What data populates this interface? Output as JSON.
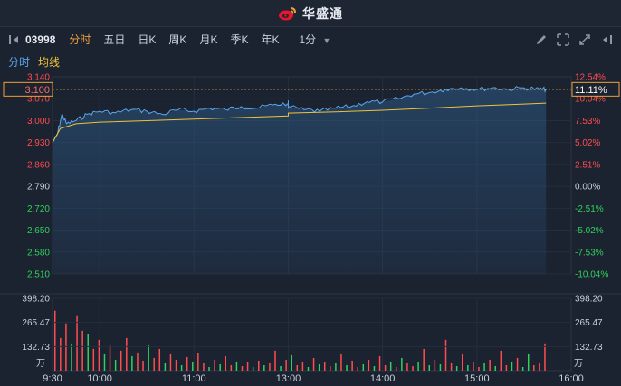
{
  "app": {
    "brand": "华盛通"
  },
  "toolbar": {
    "stock_code": "03998",
    "tabs": [
      "分时",
      "五日",
      "日K",
      "周K",
      "月K",
      "季K",
      "年K"
    ],
    "interval": "1分",
    "icons": [
      "pencil-icon",
      "expand-icon",
      "arrows-icon",
      "collapse-icon"
    ]
  },
  "legend": {
    "time_share": "分时",
    "average": "均线"
  },
  "colors": {
    "up": "#ff4d4f",
    "down": "#2fd15c",
    "price_line": "#5aa7ef",
    "avg_line": "#f0c23a",
    "accent": "#f0a13a",
    "bg": "#1b2230"
  },
  "chart_data": {
    "type": "line",
    "prev_close": 2.79,
    "current_price": "3.100",
    "current_pct": "11.11%",
    "price_ticks": [
      "3.140",
      "3.070",
      "3.000",
      "2.930",
      "2.860",
      "2.790",
      "2.720",
      "2.650",
      "2.580",
      "2.510"
    ],
    "pct_ticks": [
      "12.54%",
      "10.04%",
      "7.53%",
      "5.02%",
      "2.51%",
      "0.00%",
      "-2.51%",
      "-5.02%",
      "-7.53%",
      "-10.04%"
    ],
    "volume_ticks": [
      "398.20",
      "265.47",
      "132.73"
    ],
    "volume_unit": "万",
    "time_ticks": [
      "9:30",
      "10:00",
      "11:00",
      "13:00",
      "14:00",
      "15:00",
      "16:00"
    ],
    "price_ylim": [
      2.51,
      3.14
    ],
    "price_series": [
      [
        "09:30",
        2.93
      ],
      [
        "09:33",
        2.955
      ],
      [
        "09:36",
        3.02
      ],
      [
        "09:39",
        2.99
      ],
      [
        "09:45",
        3.0
      ],
      [
        "09:52",
        3.02
      ],
      [
        "10:00",
        3.03
      ],
      [
        "10:10",
        3.025
      ],
      [
        "10:20",
        3.035
      ],
      [
        "10:30",
        3.03
      ],
      [
        "10:40",
        3.02
      ],
      [
        "10:50",
        3.035
      ],
      [
        "11:00",
        3.03
      ],
      [
        "11:10",
        3.04
      ],
      [
        "11:20",
        3.035
      ],
      [
        "11:30",
        3.045
      ],
      [
        "11:40",
        3.04
      ],
      [
        "11:50",
        3.05
      ],
      [
        "12:00",
        3.055
      ],
      [
        "12:10",
        3.05
      ],
      [
        "12:20",
        3.045
      ],
      [
        "12:30",
        3.06
      ],
      [
        "12:40",
        3.05
      ],
      [
        "12:50",
        3.04
      ],
      [
        "13:00",
        3.045
      ],
      [
        "13:10",
        3.035
      ],
      [
        "13:20",
        3.03
      ],
      [
        "13:30",
        3.04
      ],
      [
        "13:40",
        3.045
      ],
      [
        "13:50",
        3.06
      ],
      [
        "14:00",
        3.06
      ],
      [
        "14:10",
        3.07
      ],
      [
        "14:20",
        3.085
      ],
      [
        "14:30",
        3.09
      ],
      [
        "14:40",
        3.1
      ],
      [
        "14:50",
        3.105
      ],
      [
        "15:00",
        3.1
      ],
      [
        "15:10",
        3.105
      ],
      [
        "15:20",
        3.1
      ],
      [
        "15:30",
        3.105
      ],
      [
        "15:40",
        3.1
      ],
      [
        "15:44",
        3.1
      ]
    ],
    "avg_series": [
      [
        "09:30",
        2.93
      ],
      [
        "09:35",
        2.975
      ],
      [
        "09:45",
        2.99
      ],
      [
        "10:00",
        2.995
      ],
      [
        "10:30",
        3.0
      ],
      [
        "11:00",
        3.005
      ],
      [
        "11:30",
        3.01
      ],
      [
        "12:00",
        3.015
      ],
      [
        "12:30",
        3.02
      ],
      [
        "13:00",
        3.024
      ],
      [
        "13:30",
        3.028
      ],
      [
        "14:00",
        3.033
      ],
      [
        "14:30",
        3.04
      ],
      [
        "15:00",
        3.047
      ],
      [
        "15:30",
        3.053
      ],
      [
        "15:44",
        3.056
      ]
    ],
    "volume_ylim": [
      0,
      398.2
    ],
    "volume_bars": [
      [
        330,
        1
      ],
      [
        180,
        1
      ],
      [
        260,
        1
      ],
      [
        150,
        0
      ],
      [
        300,
        1
      ],
      [
        220,
        1
      ],
      [
        200,
        0
      ],
      [
        120,
        1
      ],
      [
        170,
        1
      ],
      [
        90,
        0
      ],
      [
        140,
        1
      ],
      [
        60,
        0
      ],
      [
        110,
        1
      ],
      [
        180,
        1
      ],
      [
        80,
        0
      ],
      [
        100,
        1
      ],
      [
        55,
        1
      ],
      [
        140,
        0
      ],
      [
        70,
        1
      ],
      [
        120,
        1
      ],
      [
        40,
        0
      ],
      [
        90,
        1
      ],
      [
        60,
        1
      ],
      [
        30,
        0
      ],
      [
        75,
        1
      ],
      [
        45,
        0
      ],
      [
        95,
        1
      ],
      [
        40,
        1
      ],
      [
        20,
        0
      ],
      [
        60,
        1
      ],
      [
        35,
        0
      ],
      [
        80,
        1
      ],
      [
        30,
        1
      ],
      [
        50,
        0
      ],
      [
        25,
        1
      ],
      [
        45,
        1
      ],
      [
        20,
        0
      ],
      [
        55,
        1
      ],
      [
        30,
        0
      ],
      [
        40,
        1
      ],
      [
        110,
        1
      ],
      [
        25,
        0
      ],
      [
        60,
        1
      ],
      [
        85,
        0
      ],
      [
        30,
        1
      ],
      [
        50,
        1
      ],
      [
        20,
        0
      ],
      [
        70,
        1
      ],
      [
        35,
        0
      ],
      [
        45,
        1
      ],
      [
        25,
        1
      ],
      [
        40,
        0
      ],
      [
        90,
        1
      ],
      [
        30,
        0
      ],
      [
        55,
        1
      ],
      [
        20,
        1
      ],
      [
        35,
        0
      ],
      [
        60,
        1
      ],
      [
        25,
        0
      ],
      [
        80,
        1
      ],
      [
        30,
        1
      ],
      [
        45,
        0
      ],
      [
        20,
        1
      ],
      [
        70,
        0
      ],
      [
        40,
        1
      ],
      [
        25,
        1
      ],
      [
        50,
        0
      ],
      [
        120,
        1
      ],
      [
        30,
        0
      ],
      [
        60,
        1
      ],
      [
        35,
        0
      ],
      [
        170,
        1
      ],
      [
        40,
        1
      ],
      [
        25,
        0
      ],
      [
        90,
        1
      ],
      [
        30,
        0
      ],
      [
        50,
        1
      ],
      [
        20,
        1
      ],
      [
        40,
        0
      ],
      [
        60,
        1
      ],
      [
        25,
        0
      ],
      [
        110,
        1
      ],
      [
        30,
        1
      ],
      [
        45,
        0
      ],
      [
        70,
        1
      ],
      [
        20,
        0
      ],
      [
        90,
        0
      ],
      [
        30,
        1
      ],
      [
        40,
        1
      ],
      [
        150,
        1
      ]
    ]
  }
}
